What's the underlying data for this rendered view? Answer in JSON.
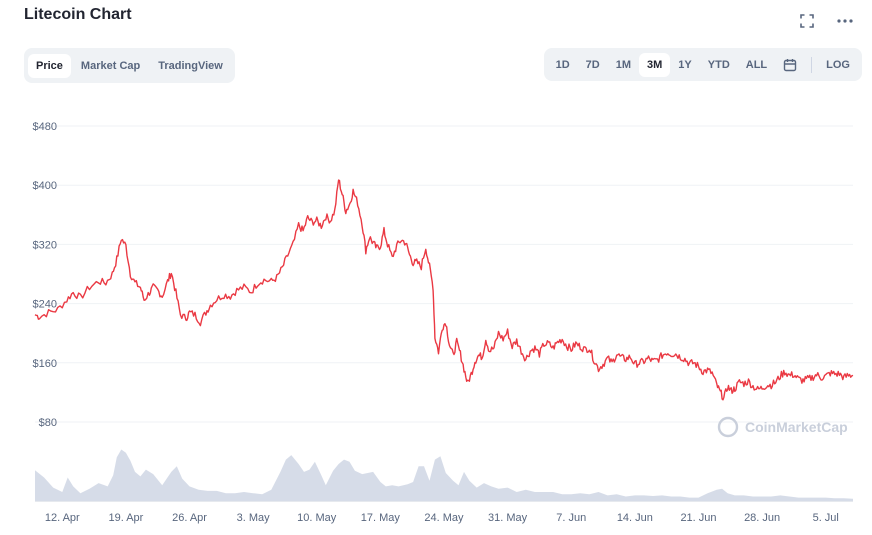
{
  "header": {
    "title": "Litecoin Chart"
  },
  "icons": {
    "fullscreen": "fullscreen-icon",
    "more": "more-horizontal-icon",
    "calendar": "calendar-icon"
  },
  "tabs": [
    {
      "label": "Price",
      "active": true
    },
    {
      "label": "Market Cap",
      "active": false
    },
    {
      "label": "TradingView",
      "active": false
    }
  ],
  "ranges": [
    {
      "label": "1D",
      "active": false
    },
    {
      "label": "7D",
      "active": false
    },
    {
      "label": "1M",
      "active": false
    },
    {
      "label": "3M",
      "active": true
    },
    {
      "label": "1Y",
      "active": false
    },
    {
      "label": "YTD",
      "active": false
    },
    {
      "label": "ALL",
      "active": false
    }
  ],
  "log_label": "LOG",
  "watermark": "CoinMarketCap",
  "colors": {
    "line": "#ea3943",
    "volume": "#cfd6e4",
    "grid": "#eff2f5"
  },
  "chart_data": {
    "type": "line",
    "ylim": [
      80,
      480
    ],
    "yticks": [
      80,
      160,
      240,
      320,
      400,
      480
    ],
    "ytick_labels": [
      "$80",
      "$160",
      "$240",
      "$320",
      "$400",
      "$480"
    ],
    "xticks": [
      "12. Apr",
      "19. Apr",
      "26. Apr",
      "3. May",
      "10. May",
      "17. May",
      "24. May",
      "31. May",
      "7. Jun",
      "14. Jun",
      "21. Jun",
      "28. Jun",
      "5. Jul"
    ],
    "x_start_offset_days": -3,
    "x_end_offset_days": 87,
    "series": [
      {
        "price": [
          [
            -3,
            225
          ],
          [
            -2.5,
            222
          ],
          [
            -1.5,
            228
          ],
          [
            -0.5,
            232
          ],
          [
            0.5,
            245
          ],
          [
            1.2,
            255
          ],
          [
            2,
            248
          ],
          [
            3,
            262
          ],
          [
            4,
            270
          ],
          [
            4.8,
            268
          ],
          [
            5.5,
            280
          ],
          [
            6,
            300
          ],
          [
            6.5,
            328
          ],
          [
            7,
            318
          ],
          [
            7.5,
            280
          ],
          [
            8,
            268
          ],
          [
            8.6,
            262
          ],
          [
            9,
            245
          ],
          [
            9.6,
            255
          ],
          [
            10,
            262
          ],
          [
            10.5,
            258
          ],
          [
            11,
            250
          ],
          [
            11.6,
            270
          ],
          [
            12,
            282
          ],
          [
            12.5,
            255
          ],
          [
            13,
            225
          ],
          [
            13.6,
            220
          ],
          [
            14,
            228
          ],
          [
            14.6,
            225
          ],
          [
            15.2,
            215
          ],
          [
            15.8,
            228
          ],
          [
            16.3,
            238
          ],
          [
            17,
            246
          ],
          [
            17.8,
            252
          ],
          [
            18.5,
            250
          ],
          [
            19.2,
            258
          ],
          [
            20,
            262
          ],
          [
            20.8,
            256
          ],
          [
            21.5,
            268
          ],
          [
            22.2,
            272
          ],
          [
            23,
            270
          ],
          [
            23.6,
            275
          ],
          [
            24.2,
            288
          ],
          [
            24.8,
            305
          ],
          [
            25.4,
            320
          ],
          [
            26,
            346
          ],
          [
            26.5,
            338
          ],
          [
            27,
            356
          ],
          [
            27.5,
            350
          ],
          [
            28,
            352
          ],
          [
            28.5,
            345
          ],
          [
            29,
            358
          ],
          [
            29.5,
            352
          ],
          [
            30,
            366
          ],
          [
            30.4,
            408
          ],
          [
            30.8,
            388
          ],
          [
            31.2,
            365
          ],
          [
            31.6,
            374
          ],
          [
            32,
            392
          ],
          [
            32.5,
            376
          ],
          [
            33,
            348
          ],
          [
            33.4,
            312
          ],
          [
            33.8,
            330
          ],
          [
            34.2,
            322
          ],
          [
            34.6,
            315
          ],
          [
            35,
            318
          ],
          [
            35.4,
            338
          ],
          [
            35.8,
            320
          ],
          [
            36.3,
            302
          ],
          [
            36.8,
            318
          ],
          [
            37.3,
            326
          ],
          [
            37.8,
            322
          ],
          [
            38.2,
            306
          ],
          [
            38.6,
            295
          ],
          [
            39,
            296
          ],
          [
            39.5,
            290
          ],
          [
            40,
            316
          ],
          [
            40.4,
            290
          ],
          [
            40.8,
            262
          ],
          [
            41,
            195
          ],
          [
            41.4,
            175
          ],
          [
            41.8,
            208
          ],
          [
            42.2,
            215
          ],
          [
            42.6,
            185
          ],
          [
            43,
            170
          ],
          [
            43.4,
            188
          ],
          [
            43.8,
            172
          ],
          [
            44.2,
            152
          ],
          [
            44.6,
            132
          ],
          [
            45,
            145
          ],
          [
            45.4,
            162
          ],
          [
            45.8,
            170
          ],
          [
            46.2,
            168
          ],
          [
            46.6,
            192
          ],
          [
            47,
            176
          ],
          [
            47.5,
            180
          ],
          [
            48,
            200
          ],
          [
            48.5,
            192
          ],
          [
            49,
            202
          ],
          [
            49.5,
            182
          ],
          [
            50,
            190
          ],
          [
            50.5,
            176
          ],
          [
            51,
            165
          ],
          [
            51.5,
            176
          ],
          [
            52,
            180
          ],
          [
            52.5,
            172
          ],
          [
            53,
            185
          ],
          [
            53.5,
            186
          ],
          [
            54,
            180
          ],
          [
            54.5,
            188
          ],
          [
            55,
            192
          ],
          [
            55.5,
            183
          ],
          [
            56,
            178
          ],
          [
            56.5,
            186
          ],
          [
            57,
            182
          ],
          [
            57.5,
            178
          ],
          [
            58,
            180
          ],
          [
            58.5,
            164
          ],
          [
            59,
            152
          ],
          [
            59.5,
            158
          ],
          [
            60,
            166
          ],
          [
            60.5,
            160
          ],
          [
            61,
            172
          ],
          [
            61.5,
            167
          ],
          [
            62,
            165
          ],
          [
            62.5,
            168
          ],
          [
            63,
            158
          ],
          [
            63.5,
            160
          ],
          [
            64,
            162
          ],
          [
            64.5,
            166
          ],
          [
            65,
            162
          ],
          [
            65.5,
            164
          ],
          [
            66,
            170
          ],
          [
            66.5,
            174
          ],
          [
            67,
            172
          ],
          [
            67.5,
            172
          ],
          [
            68,
            168
          ],
          [
            68.5,
            165
          ],
          [
            69,
            159
          ],
          [
            69.5,
            160
          ],
          [
            70,
            155
          ],
          [
            70.5,
            148
          ],
          [
            71,
            150
          ],
          [
            71.5,
            146
          ],
          [
            72,
            130
          ],
          [
            72.4,
            120
          ],
          [
            72.8,
            112
          ],
          [
            73.2,
            128
          ],
          [
            73.6,
            122
          ],
          [
            74,
            125
          ],
          [
            74.5,
            134
          ],
          [
            75,
            132
          ],
          [
            75.5,
            135
          ],
          [
            76,
            128
          ],
          [
            76.5,
            124
          ],
          [
            77,
            126
          ],
          [
            77.5,
            130
          ],
          [
            78,
            130
          ],
          [
            78.5,
            134
          ],
          [
            79,
            142
          ],
          [
            79.5,
            148
          ],
          [
            80,
            143
          ],
          [
            80.5,
            144
          ],
          [
            81,
            138
          ],
          [
            81.5,
            136
          ],
          [
            82,
            138
          ],
          [
            82.5,
            140
          ],
          [
            83,
            144
          ],
          [
            83.5,
            140
          ],
          [
            84,
            142
          ],
          [
            84.5,
            146
          ],
          [
            85,
            145
          ],
          [
            85.5,
            145
          ],
          [
            86,
            140
          ],
          [
            86.5,
            143
          ],
          [
            87,
            143
          ]
        ],
        "volume_relative": [
          [
            -3,
            0.55
          ],
          [
            -2,
            0.42
          ],
          [
            -1,
            0.24
          ],
          [
            0,
            0.16
          ],
          [
            0.6,
            0.42
          ],
          [
            1.2,
            0.26
          ],
          [
            2,
            0.14
          ],
          [
            3,
            0.22
          ],
          [
            4,
            0.32
          ],
          [
            5,
            0.26
          ],
          [
            5.6,
            0.46
          ],
          [
            6,
            0.78
          ],
          [
            6.5,
            0.92
          ],
          [
            7,
            0.86
          ],
          [
            7.5,
            0.72
          ],
          [
            8,
            0.52
          ],
          [
            8.6,
            0.44
          ],
          [
            9.2,
            0.56
          ],
          [
            10,
            0.48
          ],
          [
            11,
            0.28
          ],
          [
            12,
            0.52
          ],
          [
            12.6,
            0.62
          ],
          [
            13.2,
            0.4
          ],
          [
            14,
            0.26
          ],
          [
            15,
            0.2
          ],
          [
            16,
            0.18
          ],
          [
            17,
            0.18
          ],
          [
            18,
            0.14
          ],
          [
            19,
            0.14
          ],
          [
            20,
            0.16
          ],
          [
            21,
            0.14
          ],
          [
            22,
            0.12
          ],
          [
            23,
            0.2
          ],
          [
            24,
            0.52
          ],
          [
            24.6,
            0.74
          ],
          [
            25.2,
            0.82
          ],
          [
            26,
            0.66
          ],
          [
            26.6,
            0.52
          ],
          [
            27.2,
            0.56
          ],
          [
            27.8,
            0.7
          ],
          [
            28.5,
            0.46
          ],
          [
            29,
            0.28
          ],
          [
            29.8,
            0.54
          ],
          [
            30.4,
            0.66
          ],
          [
            31,
            0.74
          ],
          [
            31.6,
            0.7
          ],
          [
            32.2,
            0.54
          ],
          [
            33,
            0.48
          ],
          [
            33.6,
            0.5
          ],
          [
            34.2,
            0.52
          ],
          [
            35,
            0.34
          ],
          [
            35.6,
            0.26
          ],
          [
            36.3,
            0.28
          ],
          [
            37,
            0.26
          ],
          [
            38,
            0.3
          ],
          [
            38.6,
            0.34
          ],
          [
            39.2,
            0.62
          ],
          [
            39.8,
            0.62
          ],
          [
            40.4,
            0.36
          ],
          [
            41,
            0.74
          ],
          [
            41.6,
            0.8
          ],
          [
            42.2,
            0.5
          ],
          [
            43,
            0.36
          ],
          [
            43.6,
            0.28
          ],
          [
            44.2,
            0.52
          ],
          [
            44.8,
            0.36
          ],
          [
            45.6,
            0.24
          ],
          [
            46.4,
            0.32
          ],
          [
            47.2,
            0.26
          ],
          [
            48,
            0.22
          ],
          [
            49,
            0.24
          ],
          [
            50,
            0.16
          ],
          [
            51,
            0.2
          ],
          [
            52,
            0.16
          ],
          [
            53,
            0.16
          ],
          [
            54,
            0.16
          ],
          [
            55,
            0.12
          ],
          [
            56,
            0.12
          ],
          [
            57,
            0.14
          ],
          [
            58,
            0.12
          ],
          [
            59,
            0.16
          ],
          [
            60,
            0.1
          ],
          [
            61,
            0.12
          ],
          [
            62,
            0.08
          ],
          [
            63,
            0.1
          ],
          [
            64,
            0.1
          ],
          [
            65,
            0.09
          ],
          [
            66,
            0.1
          ],
          [
            67,
            0.08
          ],
          [
            68,
            0.08
          ],
          [
            69,
            0.06
          ],
          [
            70,
            0.06
          ],
          [
            71,
            0.14
          ],
          [
            72,
            0.2
          ],
          [
            72.6,
            0.22
          ],
          [
            73.2,
            0.14
          ],
          [
            74,
            0.1
          ],
          [
            75,
            0.1
          ],
          [
            76,
            0.08
          ],
          [
            77,
            0.08
          ],
          [
            78,
            0.08
          ],
          [
            79,
            0.1
          ],
          [
            80,
            0.08
          ],
          [
            81,
            0.06
          ],
          [
            82,
            0.06
          ],
          [
            83,
            0.06
          ],
          [
            84,
            0.06
          ],
          [
            85,
            0.05
          ],
          [
            86,
            0.05
          ],
          [
            87,
            0.04
          ]
        ]
      }
    ]
  }
}
